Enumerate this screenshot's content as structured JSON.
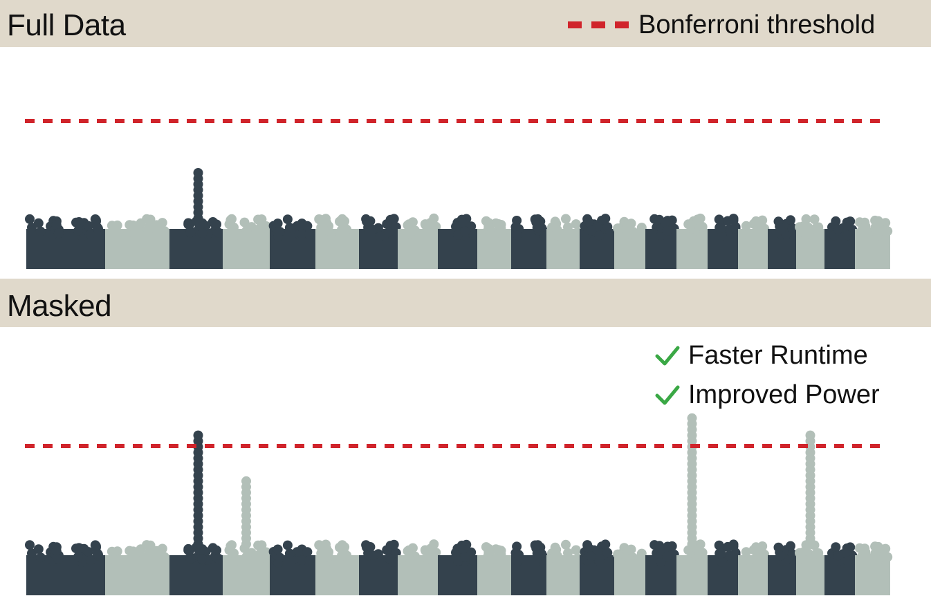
{
  "panels": [
    {
      "title": "Full Data"
    },
    {
      "title": "Masked"
    }
  ],
  "legend": {
    "label": "Bonferroni threshold",
    "color": "#d0242b"
  },
  "benefits": [
    {
      "label": "Faster Runtime",
      "icon": "check-icon"
    },
    {
      "label": "Improved Power",
      "icon": "check-icon"
    }
  ],
  "colors": {
    "dark": "#34424d",
    "light": "#b2bfb8",
    "threshold": "#d0242b",
    "check": "#3aa845",
    "band": "#e0d9cb"
  },
  "chart_data": [
    {
      "type": "scatter",
      "title": "Full Data",
      "chromosomes": 22,
      "threshold": 7.3,
      "ylim": [
        0,
        10.5
      ],
      "peaks": [
        {
          "chromosome": 3,
          "max": 4.8
        }
      ]
    },
    {
      "type": "scatter",
      "title": "Masked",
      "chromosomes": 22,
      "threshold": 7.3,
      "ylim": [
        0,
        10.5
      ],
      "peaks": [
        {
          "chromosome": 3,
          "max": 8.1
        },
        {
          "chromosome": 4,
          "max": 5.6
        },
        {
          "chromosome": 16,
          "max": 8.9
        },
        {
          "chromosome": 20,
          "max": 7.9
        }
      ]
    }
  ]
}
